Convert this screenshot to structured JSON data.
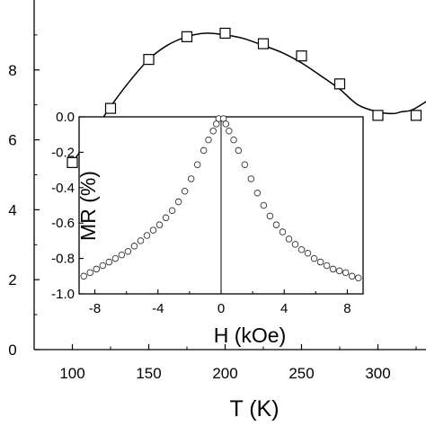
{
  "chart_data": [
    {
      "type": "line",
      "title": "",
      "xlabel": "T (K)",
      "ylabel": "",
      "xlim": [
        75,
        335
      ],
      "ylim": [
        0,
        10
      ],
      "xticks": [
        100,
        150,
        200,
        250,
        300
      ],
      "xtick_labels": [
        "100",
        "150",
        "200",
        "250",
        "300"
      ],
      "yticks": [
        0,
        2,
        4,
        6,
        8
      ],
      "ytick_labels": [
        "0",
        "2",
        "4",
        "6",
        "8"
      ],
      "grid": false,
      "series": [
        {
          "marker": "open-square",
          "x": [
            100,
            125,
            150,
            175,
            200,
            225,
            250,
            275,
            300,
            325
          ],
          "y": [
            5.35,
            6.9,
            8.3,
            8.95,
            9.05,
            8.75,
            8.4,
            7.6,
            6.7,
            6.7
          ]
        }
      ],
      "fit_curve": {
        "x": [
          100,
          112,
          125,
          137,
          150,
          162,
          175,
          187,
          200,
          212,
          225,
          237,
          250,
          262,
          275,
          287,
          300,
          310,
          315,
          322,
          330,
          335
        ],
        "y": [
          5.35,
          6.1,
          6.95,
          7.65,
          8.3,
          8.7,
          8.95,
          9.05,
          9.0,
          8.9,
          8.7,
          8.5,
          8.2,
          7.85,
          7.45,
          7.0,
          6.8,
          6.75,
          6.8,
          6.85,
          7.05,
          7.2
        ]
      }
    },
    {
      "type": "scatter",
      "title": "",
      "xlabel": "H (kOe)",
      "ylabel": "MR (%)",
      "xlim": [
        -9,
        9
      ],
      "ylim": [
        -1.0,
        0.0
      ],
      "xticks": [
        -8,
        -4,
        0,
        4,
        8
      ],
      "xtick_labels": [
        "-8",
        "-4",
        "0",
        "4",
        "8"
      ],
      "yticks": [
        0.0,
        -0.2,
        -0.4,
        -0.6,
        -0.8,
        -1.0
      ],
      "ytick_labels": [
        "0.0",
        "-0.2",
        "-0.4",
        "-0.6",
        "-0.8",
        "-1.0"
      ],
      "grid": false,
      "series": [
        {
          "marker": "open-circle",
          "x": [
            -8.7,
            -8.3,
            -7.9,
            -7.5,
            -7.1,
            -6.7,
            -6.3,
            -5.9,
            -5.5,
            -5.1,
            -4.7,
            -4.3,
            -3.9,
            -3.5,
            -3.1,
            -2.7,
            -2.3,
            -1.9,
            -1.5,
            -1.1,
            -0.8,
            -0.5,
            -0.3,
            -0.15,
            0.15,
            0.3,
            0.5,
            0.8,
            1.1,
            1.5,
            1.9,
            2.3,
            2.7,
            3.1,
            3.5,
            3.9,
            4.3,
            4.7,
            5.1,
            5.5,
            5.9,
            6.3,
            6.7,
            7.1,
            7.5,
            7.9,
            8.3,
            8.7
          ],
          "y": [
            -0.9,
            -0.88,
            -0.86,
            -0.84,
            -0.82,
            -0.8,
            -0.78,
            -0.76,
            -0.73,
            -0.7,
            -0.67,
            -0.64,
            -0.61,
            -0.57,
            -0.53,
            -0.48,
            -0.42,
            -0.35,
            -0.27,
            -0.19,
            -0.13,
            -0.08,
            -0.04,
            -0.01,
            -0.01,
            -0.04,
            -0.08,
            -0.13,
            -0.19,
            -0.27,
            -0.35,
            -0.43,
            -0.5,
            -0.56,
            -0.61,
            -0.65,
            -0.69,
            -0.72,
            -0.75,
            -0.77,
            -0.8,
            -0.82,
            -0.84,
            -0.86,
            -0.87,
            -0.88,
            -0.9,
            -0.91
          ]
        }
      ]
    }
  ]
}
